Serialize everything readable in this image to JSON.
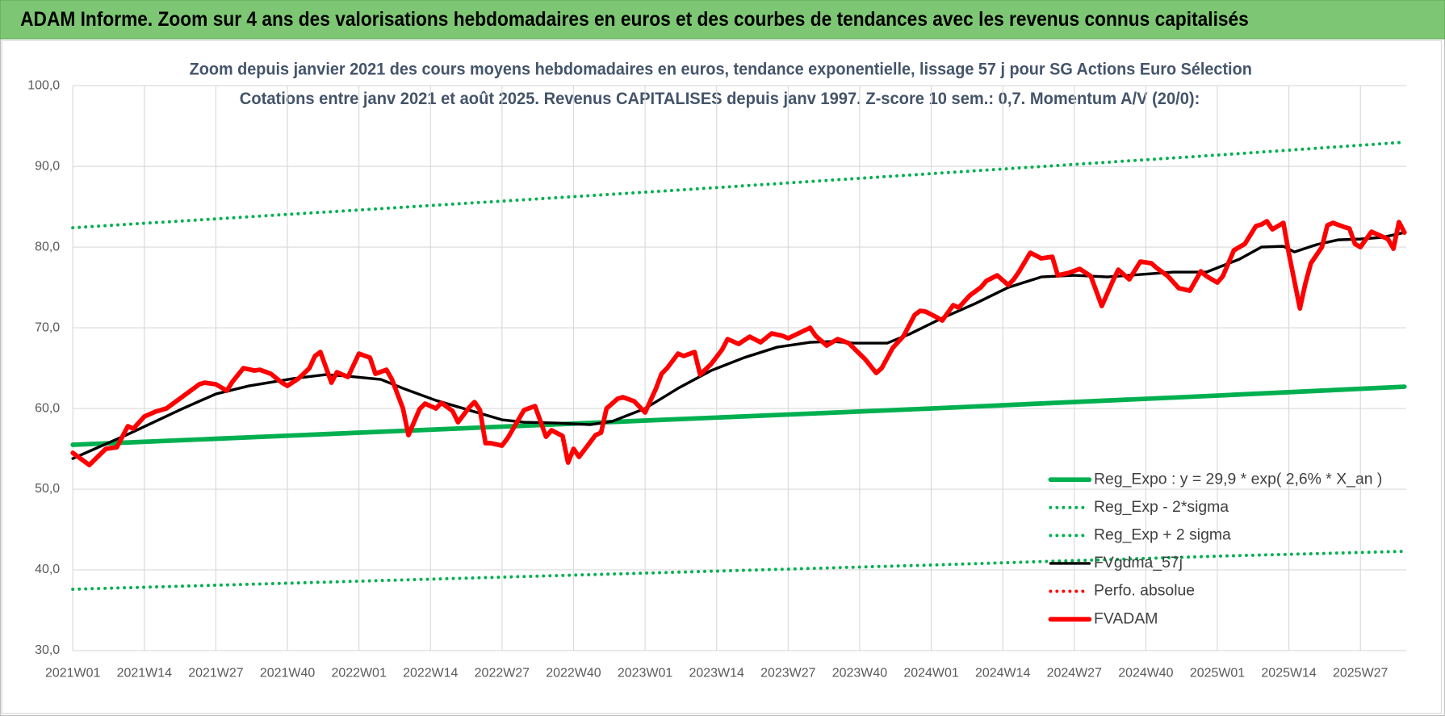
{
  "header": {
    "title": "ADAM Informe. Zoom sur 4 ans des valorisations hebdomadaires en euros et des courbes de tendances avec les revenus connus capitalisés"
  },
  "chart_data": {
    "type": "line",
    "title": "Zoom depuis janvier 2021 des cours moyens hebdomadaires en euros, tendance exponentielle, lissage 57 j pour SG Actions Euro Sélection",
    "subtitle": "Cotations entre janv 2021 et août 2025.  Revenus CAPITALISES depuis janv 1997. Z-score 10 sem.: 0,7. Momentum A/V (20/0):",
    "xlim": [
      "2021W01",
      "2025W35"
    ],
    "xticks": [
      "2021W01",
      "2021W14",
      "2021W27",
      "2021W40",
      "2022W01",
      "2022W14",
      "2022W27",
      "2022W40",
      "2023W01",
      "2023W14",
      "2023W27",
      "2023W40",
      "2024W01",
      "2024W14",
      "2024W27",
      "2024W40",
      "2025W01",
      "2025W14",
      "2025W27"
    ],
    "ylim": [
      30,
      100
    ],
    "yticks": [
      {
        "value": 30,
        "label": "30,0"
      },
      {
        "value": 40,
        "label": "40,0"
      },
      {
        "value": 50,
        "label": "50,0"
      },
      {
        "value": 60,
        "label": "60,0"
      },
      {
        "value": 70,
        "label": "70,0"
      },
      {
        "value": 80,
        "label": "80,0"
      },
      {
        "value": 90,
        "label": "90,0"
      },
      {
        "value": 100,
        "label": "100,0"
      }
    ],
    "grid": true,
    "legend": "lower right",
    "series": [
      {
        "name": "Reg_Expo : y = 29,9 * exp( 2,6% *  X_an )",
        "color": "#00b050",
        "style": "thick",
        "x": [
          "2021W01",
          "2022W01",
          "2023W01",
          "2024W01",
          "2025W01",
          "2025W35"
        ],
        "values": [
          55.5,
          57.0,
          58.5,
          60.0,
          61.6,
          62.7
        ]
      },
      {
        "name": "Reg_Exp - 2*sigma",
        "color": "#00b050",
        "style": "dotted",
        "x": [
          "2021W01",
          "2022W01",
          "2023W01",
          "2024W01",
          "2025W01",
          "2025W35"
        ],
        "values": [
          37.6,
          38.6,
          39.6,
          40.6,
          41.7,
          42.3
        ]
      },
      {
        "name": "Reg_Exp + 2 sigma",
        "color": "#00b050",
        "style": "dotted",
        "x": [
          "2021W01",
          "2022W01",
          "2023W01",
          "2024W01",
          "2025W01",
          "2025W35"
        ],
        "values": [
          82.4,
          84.6,
          86.8,
          89.1,
          91.4,
          93.0
        ]
      },
      {
        "name": "FVgdma_57j",
        "color": "#000000",
        "style": "solid",
        "x": [
          "2021W01",
          "2021W11",
          "2021W21",
          "2021W27",
          "2021W33",
          "2021W41",
          "2021W47",
          "2021W51",
          "2022W05",
          "2022W09",
          "2022W15",
          "2022W21",
          "2022W27",
          "2022W31",
          "2022W37",
          "2022W43",
          "2022W47",
          "2023W01",
          "2023W07",
          "2023W13",
          "2023W19",
          "2023W25",
          "2023W31",
          "2023W35",
          "2023W39",
          "2023W45",
          "2023W49",
          "2024W03",
          "2024W09",
          "2024W15",
          "2024W21",
          "2024W27",
          "2024W33",
          "2024W39",
          "2024W45",
          "2024W51",
          "2025W05",
          "2025W09",
          "2025W13",
          "2025W15",
          "2025W19",
          "2025W23",
          "2025W27",
          "2025W31",
          "2025W35"
        ],
        "values": [
          53.8,
          56.8,
          60.0,
          61.8,
          62.8,
          63.7,
          64.2,
          64.0,
          63.6,
          62.5,
          61.0,
          59.8,
          58.6,
          58.3,
          58.2,
          58.0,
          58.4,
          60.0,
          62.5,
          64.7,
          66.3,
          67.6,
          68.2,
          68.3,
          68.1,
          68.1,
          69.2,
          71.2,
          73.0,
          75.0,
          76.3,
          76.5,
          76.3,
          76.6,
          76.9,
          76.9,
          78.5,
          80.0,
          80.1,
          79.4,
          80.3,
          80.9,
          81.0,
          81.2,
          81.8
        ]
      },
      {
        "name": "Perfo. absolue",
        "color": "#ff0000",
        "style": "dotted",
        "x": [],
        "values": []
      },
      {
        "name": "FVADAM",
        "color": "#ff0000",
        "style": "thick",
        "x": [
          "2021W01",
          "2021W04",
          "2021W07",
          "2021W09",
          "2021W11",
          "2021W12",
          "2021W14",
          "2021W16",
          "2021W18",
          "2021W20",
          "2021W22",
          "2021W24",
          "2021W25",
          "2021W27",
          "2021W29",
          "2021W30",
          "2021W32",
          "2021W34",
          "2021W35",
          "2021W37",
          "2021W39",
          "2021W40",
          "2021W42",
          "2021W44",
          "2021W45",
          "2021W46",
          "2021W48",
          "2021W49",
          "2021W51",
          "2022W01",
          "2022W03",
          "2022W04",
          "2022W06",
          "2022W07",
          "2022W09",
          "2022W10",
          "2022W12",
          "2022W13",
          "2022W15",
          "2022W16",
          "2022W18",
          "2022W19",
          "2022W21",
          "2022W22",
          "2022W23",
          "2022W24",
          "2022W25",
          "2022W27",
          "2022W28",
          "2022W31",
          "2022W33",
          "2022W35",
          "2022W36",
          "2022W38",
          "2022W39",
          "2022W40",
          "2022W41",
          "2022W44",
          "2022W45",
          "2022W46",
          "2022W48",
          "2022W49",
          "2022W51",
          "2023W01",
          "2023W03",
          "2023W04",
          "2023W05",
          "2023W07",
          "2023W08",
          "2023W10",
          "2023W11",
          "2023W13",
          "2023W15",
          "2023W16",
          "2023W18",
          "2023W20",
          "2023W22",
          "2023W24",
          "2023W26",
          "2023W27",
          "2023W31",
          "2023W32",
          "2023W34",
          "2023W36",
          "2023W38",
          "2023W41",
          "2023W43",
          "2023W44",
          "2023W46",
          "2023W48",
          "2023W50",
          "2023W51",
          "2023W52",
          "2024W02",
          "2024W03",
          "2024W05",
          "2024W06",
          "2024W08",
          "2024W10",
          "2024W11",
          "2024W13",
          "2024W15",
          "2024W16",
          "2024W17",
          "2024W19",
          "2024W21",
          "2024W23",
          "2024W24",
          "2024W26",
          "2024W28",
          "2024W30",
          "2024W32",
          "2024W34",
          "2024W35",
          "2024W37",
          "2024W39",
          "2024W41",
          "2024W42",
          "2024W44",
          "2024W46",
          "2024W48",
          "2024W50",
          "2024W51",
          "2025W01",
          "2025W02",
          "2025W04",
          "2025W06",
          "2025W08",
          "2025W09",
          "2025W10",
          "2025W11",
          "2025W13",
          "2025W14",
          "2025W16",
          "2025W17",
          "2025W18",
          "2025W20",
          "2025W21",
          "2025W22",
          "2025W24",
          "2025W25",
          "2025W26",
          "2025W27",
          "2025W29",
          "2025W31",
          "2025W32",
          "2025W33",
          "2025W34",
          "2025W35"
        ],
        "values": [
          54.5,
          53.0,
          55.0,
          55.2,
          57.8,
          57.5,
          59.0,
          59.6,
          60.0,
          61.0,
          62.0,
          63.0,
          63.2,
          63.0,
          62.2,
          63.3,
          65.0,
          64.7,
          64.8,
          64.3,
          63.2,
          62.8,
          63.7,
          65.0,
          66.5,
          67.0,
          63.2,
          64.5,
          63.9,
          66.8,
          66.3,
          64.3,
          64.8,
          63.6,
          60.0,
          56.7,
          59.9,
          60.6,
          60.0,
          60.7,
          59.7,
          58.3,
          60.1,
          60.8,
          59.8,
          55.7,
          55.7,
          55.4,
          56.3,
          59.8,
          60.3,
          56.5,
          57.3,
          56.6,
          53.3,
          55.0,
          54.0,
          56.7,
          57.0,
          60.0,
          61.2,
          61.4,
          60.9,
          59.5,
          62.5,
          64.3,
          65.0,
          66.8,
          66.5,
          67.0,
          64.2,
          65.5,
          67.3,
          68.6,
          68.0,
          68.9,
          68.2,
          69.3,
          69.0,
          68.7,
          70.0,
          69.0,
          67.8,
          68.6,
          68.1,
          66.1,
          64.4,
          65.0,
          67.5,
          69.0,
          71.6,
          72.1,
          72.0,
          71.3,
          70.9,
          72.8,
          72.5,
          74.0,
          75.0,
          75.8,
          76.5,
          75.3,
          76.0,
          77.0,
          79.3,
          78.6,
          78.8,
          76.5,
          76.8,
          77.3,
          76.4,
          72.7,
          75.8,
          77.2,
          76.0,
          78.2,
          78.0,
          77.4,
          76.4,
          74.9,
          74.6,
          77.0,
          76.4,
          75.6,
          76.4,
          79.6,
          80.4,
          82.6,
          82.8,
          83.2,
          82.2,
          83.0,
          79.2,
          72.4,
          75.5,
          78.0,
          80.0,
          82.7,
          83.0,
          82.5,
          82.3,
          80.4,
          80.0,
          81.9,
          81.3,
          81.0,
          79.8,
          83.1,
          81.8
        ]
      }
    ]
  }
}
